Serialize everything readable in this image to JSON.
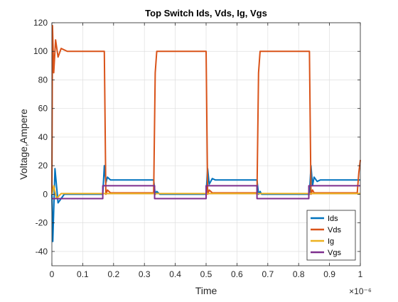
{
  "chart_data": {
    "type": "line",
    "title": "Top Switch Ids, Vds, Ig, Vgs",
    "xlabel": "Time",
    "ylabel": "Voltage,Ampere",
    "x_exponent_label": "×10⁻⁶",
    "xlim": [
      0,
      1
    ],
    "ylim": [
      -50,
      120
    ],
    "x_ticks": [
      0,
      0.1,
      0.2,
      0.3,
      0.4,
      0.5,
      0.6,
      0.7,
      0.8,
      0.9,
      1
    ],
    "x_tick_labels": [
      "0",
      "0.1",
      "0.2",
      "0.3",
      "0.4",
      "0.5",
      "0.6",
      "0.7",
      "0.8",
      "0.9",
      "1"
    ],
    "y_ticks": [
      -40,
      -20,
      0,
      20,
      40,
      60,
      80,
      100,
      120
    ],
    "y_tick_labels": [
      "-40",
      "-20",
      "0",
      "20",
      "40",
      "60",
      "80",
      "100",
      "120"
    ],
    "grid": true,
    "legend_position": "bottom-right",
    "series": [
      {
        "name": "Ids",
        "color": "#0072BD",
        "x": [
          0,
          0.003,
          0.01,
          0.02,
          0.04,
          0.165,
          0.17,
          0.175,
          0.18,
          0.19,
          0.2,
          0.33,
          0.335,
          0.34,
          0.35,
          0.5,
          0.505,
          0.51,
          0.52,
          0.53,
          0.665,
          0.67,
          0.675,
          0.68,
          0.69,
          0.835,
          0.84,
          0.845,
          0.85,
          0.86,
          0.87,
          1
        ],
        "y": [
          0,
          -33,
          18,
          -6,
          0,
          0,
          20,
          8,
          12,
          10,
          10,
          10,
          0,
          2,
          0,
          0,
          18,
          7,
          11,
          10,
          10,
          0,
          2,
          0,
          0,
          0,
          20,
          6,
          12,
          9,
          10,
          10
        ]
      },
      {
        "name": "Vds",
        "color": "#D95319",
        "x": [
          0,
          0.002,
          0.006,
          0.012,
          0.02,
          0.03,
          0.05,
          0.17,
          0.175,
          0.18,
          0.19,
          0.2,
          0.33,
          0.335,
          0.34,
          0.35,
          0.5,
          0.505,
          0.51,
          0.52,
          0.53,
          0.665,
          0.67,
          0.675,
          0.68,
          0.69,
          0.835,
          0.84,
          0.845,
          0.85,
          0.86,
          0.99,
          0.995,
          1
        ],
        "y": [
          0,
          118,
          85,
          108,
          96,
          102,
          100,
          100,
          0,
          3,
          1,
          1,
          1,
          85,
          100,
          100,
          100,
          0,
          3,
          1,
          1,
          1,
          85,
          100,
          100,
          100,
          100,
          0,
          3,
          1,
          1,
          1,
          15,
          24
        ]
      },
      {
        "name": "Ig",
        "color": "#EDB120",
        "x": [
          0,
          0.006,
          0.015,
          0.03,
          1
        ],
        "y": [
          0,
          6,
          -3,
          0.5,
          0.5
        ]
      },
      {
        "name": "Vgs",
        "color": "#7E2F8E",
        "x": [
          0,
          0.005,
          0.165,
          0.165,
          0.333,
          0.333,
          0.5,
          0.5,
          0.665,
          0.665,
          0.833,
          0.833,
          1
        ],
        "y": [
          -3,
          -3,
          -3,
          6,
          6,
          -3,
          -3,
          6,
          6,
          -3,
          -3,
          6,
          6
        ]
      }
    ]
  }
}
